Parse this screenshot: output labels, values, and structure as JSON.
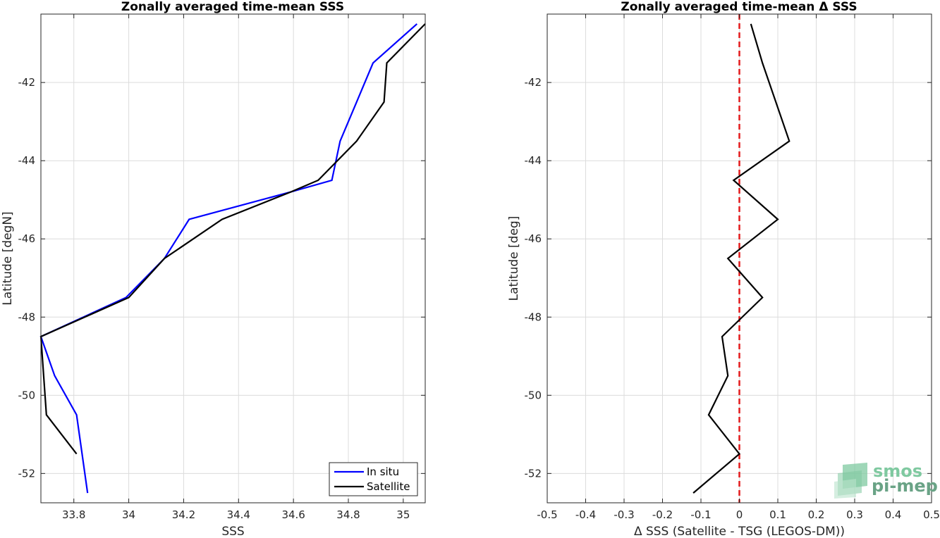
{
  "chart_data": [
    {
      "type": "line",
      "title": "Zonally averaged time-mean SSS",
      "xlabel": "SSS",
      "ylabel": "Latitude [degN]",
      "xlim": [
        33.68,
        35.08
      ],
      "ylim": [
        -52.75,
        -40.25
      ],
      "grid": true,
      "x_ticks": [
        33.8,
        34,
        34.2,
        34.4,
        34.6,
        34.8,
        35
      ],
      "x_tick_labels": [
        "33.8",
        "34",
        "34.2",
        "34.4",
        "34.6",
        "34.8",
        "35"
      ],
      "y_ticks": [
        -52,
        -50,
        -48,
        -46,
        -44,
        -42
      ],
      "y_tick_labels": [
        "-52",
        "-50",
        "-48",
        "-46",
        "-44",
        "-42"
      ],
      "legend_position": "bottom-right",
      "series": [
        {
          "name": "In situ",
          "color": "#0000ff",
          "x": [
            33.85,
            33.81,
            33.73,
            33.68,
            33.99,
            34.13,
            34.22,
            34.59,
            34.74,
            34.77,
            34.83,
            34.89,
            35.05
          ],
          "y": [
            -52.5,
            -50.5,
            -49.5,
            -48.5,
            -47.5,
            -46.5,
            -45.5,
            -44.8,
            -44.5,
            -43.5,
            -42.5,
            -41.5,
            -40.5
          ]
        },
        {
          "name": "Satellite",
          "color": "#000000",
          "x": [
            33.81,
            33.7,
            33.69,
            33.68,
            34.0,
            34.13,
            34.34,
            34.59,
            34.69,
            34.83,
            34.93,
            34.94,
            35.08
          ],
          "y": [
            -51.5,
            -50.5,
            -49.5,
            -48.5,
            -47.5,
            -46.5,
            -45.5,
            -44.8,
            -44.5,
            -43.5,
            -42.5,
            -41.5,
            -40.5
          ]
        }
      ]
    },
    {
      "type": "line",
      "title": "Zonally averaged time-mean Δ SSS",
      "xlabel": "Δ SSS (Satellite - TSG (LEGOS-DM))",
      "ylabel": "Latitude [deg]",
      "xlim": [
        -0.5,
        0.5
      ],
      "ylim": [
        -52.75,
        -40.25
      ],
      "grid": true,
      "x_ticks": [
        -0.5,
        -0.4,
        -0.3,
        -0.2,
        -0.1,
        0,
        0.1,
        0.2,
        0.3,
        0.4,
        0.5
      ],
      "x_tick_labels": [
        "-0.5",
        "-0.4",
        "-0.3",
        "-0.2",
        "-0.1",
        "0",
        "0.1",
        "0.2",
        "0.3",
        "0.4",
        "0.5"
      ],
      "y_ticks": [
        -52,
        -50,
        -48,
        -46,
        -44,
        -42
      ],
      "y_tick_labels": [
        "-52",
        "-50",
        "-48",
        "-46",
        "-44",
        "-42"
      ],
      "reference_line": {
        "x": 0,
        "color": "#e41a1c",
        "style": "dashed"
      },
      "series": [
        {
          "color": "#000000",
          "x": [
            -0.12,
            0.0,
            -0.08,
            -0.03,
            -0.045,
            0.06,
            -0.03,
            0.1,
            -0.015,
            0.13,
            0.06,
            0.03
          ],
          "y": [
            -52.5,
            -51.5,
            -50.5,
            -49.5,
            -48.5,
            -47.5,
            -46.5,
            -45.5,
            -44.5,
            -43.5,
            -41.5,
            -40.5
          ]
        }
      ]
    }
  ],
  "watermark": {
    "line1": "smos",
    "line2": "pi-mep",
    "color1": "#7fc9a0",
    "color2": "#6aa386"
  }
}
